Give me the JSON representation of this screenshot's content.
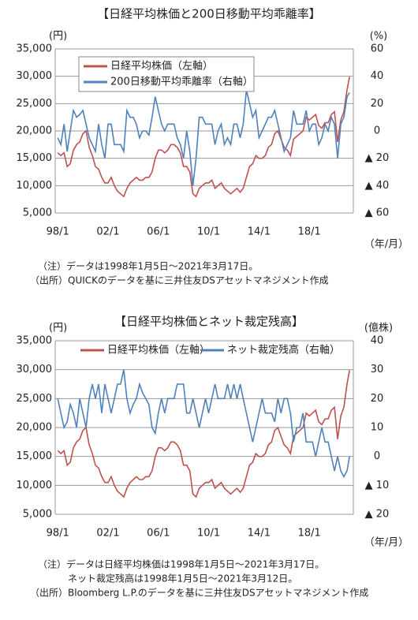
{
  "chart_data": [
    {
      "type": "line",
      "title": "【日経平均株価と200日移動平均乖離率】",
      "ylabel": "(円)",
      "y2label": "(%)",
      "xlabel": "（年/月）",
      "x": [
        1998,
        1998.25,
        1998.5,
        1998.75,
        1999,
        1999.25,
        1999.5,
        1999.75,
        2000,
        2000.25,
        2000.5,
        2000.75,
        2001,
        2001.25,
        2001.5,
        2001.75,
        2002,
        2002.25,
        2002.5,
        2002.75,
        2003,
        2003.25,
        2003.5,
        2003.75,
        2004,
        2004.25,
        2004.5,
        2004.75,
        2005,
        2005.25,
        2005.5,
        2005.75,
        2006,
        2006.25,
        2006.5,
        2006.75,
        2007,
        2007.25,
        2007.5,
        2007.75,
        2008,
        2008.25,
        2008.5,
        2008.75,
        2009,
        2009.25,
        2009.5,
        2009.75,
        2010,
        2010.25,
        2010.5,
        2010.75,
        2011,
        2011.25,
        2011.5,
        2011.75,
        2012,
        2012.25,
        2012.5,
        2012.75,
        2013,
        2013.25,
        2013.5,
        2013.75,
        2014,
        2014.25,
        2014.5,
        2014.75,
        2015,
        2015.25,
        2015.5,
        2015.75,
        2016,
        2016.25,
        2016.5,
        2016.75,
        2017,
        2017.25,
        2017.5,
        2017.75,
        2018,
        2018.25,
        2018.5,
        2018.75,
        2019,
        2019.25,
        2019.5,
        2019.75,
        2020,
        2020.25,
        2020.5,
        2020.75,
        2021,
        2021.2
      ],
      "series": [
        {
          "name": "日経平均株価（左軸）",
          "color": "#c0504d",
          "values": [
            16000,
            15500,
            16000,
            13500,
            14000,
            16500,
            17500,
            18000,
            19500,
            20000,
            17000,
            15500,
            13500,
            13000,
            11500,
            10500,
            10500,
            11500,
            10000,
            9000,
            8500,
            8000,
            9500,
            10500,
            11000,
            11500,
            11000,
            11000,
            11500,
            11500,
            12500,
            15000,
            16500,
            16500,
            16000,
            16500,
            17500,
            17500,
            17000,
            16000,
            13500,
            13500,
            12500,
            8500,
            8000,
            9500,
            10000,
            10500,
            10500,
            11000,
            9500,
            10000,
            10500,
            9500,
            9000,
            8500,
            9000,
            9500,
            8800,
            9500,
            11500,
            13500,
            14000,
            15500,
            15000,
            15000,
            15500,
            17000,
            17500,
            19500,
            20000,
            18500,
            17000,
            16500,
            15500,
            18500,
            19000,
            19500,
            20000,
            22500,
            22000,
            22500,
            23000,
            21000,
            20500,
            21500,
            21500,
            23000,
            23500,
            18000,
            22000,
            23500,
            27500,
            29900
          ]
        },
        {
          "name": "200日移動平均乖離率（右軸）",
          "color": "#4f81bd",
          "axis": "y2",
          "values": [
            -5,
            -10,
            5,
            -15,
            0,
            15,
            10,
            12,
            15,
            5,
            -5,
            -10,
            -15,
            5,
            -10,
            -20,
            5,
            5,
            -10,
            -10,
            -10,
            -15,
            15,
            10,
            10,
            5,
            -5,
            0,
            0,
            -3,
            10,
            25,
            15,
            5,
            0,
            5,
            5,
            5,
            -5,
            -10,
            -20,
            0,
            -15,
            -40,
            -20,
            10,
            10,
            5,
            5,
            5,
            -10,
            0,
            5,
            -10,
            -5,
            -10,
            5,
            5,
            -5,
            5,
            30,
            20,
            10,
            15,
            -5,
            0,
            5,
            10,
            10,
            15,
            5,
            -5,
            -15,
            -10,
            -5,
            15,
            5,
            5,
            5,
            15,
            0,
            5,
            5,
            -10,
            -5,
            5,
            0,
            10,
            5,
            -20,
            5,
            10,
            25,
            28
          ]
        }
      ],
      "xlim": [
        1997.8,
        2021.5
      ],
      "xticks": [
        {
          "value": 1998,
          "label": "98/1"
        },
        {
          "value": 2002,
          "label": "02/1"
        },
        {
          "value": 2006,
          "label": "06/1"
        },
        {
          "value": 2010,
          "label": "10/1"
        },
        {
          "value": 2014,
          "label": "14/1"
        },
        {
          "value": 2018,
          "label": "18/1"
        }
      ],
      "ylim": [
        5000,
        35000
      ],
      "yticks": [
        {
          "value": 5000,
          "label": "5,000"
        },
        {
          "value": 10000,
          "label": "10,000"
        },
        {
          "value": 15000,
          "label": "15,000"
        },
        {
          "value": 20000,
          "label": "20,000"
        },
        {
          "value": 25000,
          "label": "25,000"
        },
        {
          "value": 30000,
          "label": "30,000"
        },
        {
          "value": 35000,
          "label": "35,000"
        }
      ],
      "y2lim": [
        -60,
        60
      ],
      "y2ticks": [
        {
          "value": -60,
          "label": "▲ 60"
        },
        {
          "value": -40,
          "label": "▲ 40"
        },
        {
          "value": -20,
          "label": "▲ 20"
        },
        0,
        20,
        40,
        60
      ],
      "grid": true,
      "legend": "upper left",
      "notes": [
        "（注）データは1998年1月5日～2021年3月17日。",
        "（出所）QUICKのデータを基に三井住友DSアセットマネジメント作成"
      ]
    },
    {
      "type": "line",
      "title": "【日経平均株価とネット裁定残高】",
      "ylabel": "(円)",
      "y2label": "(億株)",
      "xlabel": "（年/月）",
      "x": [
        1998,
        1998.25,
        1998.5,
        1998.75,
        1999,
        1999.25,
        1999.5,
        1999.75,
        2000,
        2000.25,
        2000.5,
        2000.75,
        2001,
        2001.25,
        2001.5,
        2001.75,
        2002,
        2002.25,
        2002.5,
        2002.75,
        2003,
        2003.25,
        2003.5,
        2003.75,
        2004,
        2004.25,
        2004.5,
        2004.75,
        2005,
        2005.25,
        2005.5,
        2005.75,
        2006,
        2006.25,
        2006.5,
        2006.75,
        2007,
        2007.25,
        2007.5,
        2007.75,
        2008,
        2008.25,
        2008.5,
        2008.75,
        2009,
        2009.25,
        2009.5,
        2009.75,
        2010,
        2010.25,
        2010.5,
        2010.75,
        2011,
        2011.25,
        2011.5,
        2011.75,
        2012,
        2012.25,
        2012.5,
        2012.75,
        2013,
        2013.25,
        2013.5,
        2013.75,
        2014,
        2014.25,
        2014.5,
        2014.75,
        2015,
        2015.25,
        2015.5,
        2015.75,
        2016,
        2016.25,
        2016.5,
        2016.75,
        2017,
        2017.25,
        2017.5,
        2017.75,
        2018,
        2018.25,
        2018.5,
        2018.75,
        2019,
        2019.25,
        2019.5,
        2019.75,
        2020,
        2020.25,
        2020.5,
        2020.75,
        2021,
        2021.2
      ],
      "series": [
        {
          "name": "日経平均株価（左軸）",
          "color": "#c0504d",
          "values": [
            16000,
            15500,
            16000,
            13500,
            14000,
            16500,
            17500,
            18000,
            19500,
            20000,
            17000,
            15500,
            13500,
            13000,
            11500,
            10500,
            10500,
            11500,
            10000,
            9000,
            8500,
            8000,
            9500,
            10500,
            11000,
            11500,
            11000,
            11000,
            11500,
            11500,
            12500,
            15000,
            16500,
            16500,
            16000,
            16500,
            17500,
            17500,
            17000,
            16000,
            13500,
            13500,
            12500,
            8500,
            8000,
            9500,
            10000,
            10500,
            10500,
            11000,
            9500,
            10000,
            10500,
            9500,
            9000,
            8500,
            9000,
            9500,
            8800,
            9500,
            11500,
            13500,
            14000,
            15500,
            15000,
            15000,
            15500,
            17000,
            17500,
            19500,
            20000,
            18500,
            17000,
            16500,
            15500,
            18500,
            19000,
            19500,
            20000,
            22500,
            22000,
            22500,
            23000,
            21000,
            20500,
            21500,
            21500,
            23000,
            23500,
            18000,
            22000,
            23500,
            27500,
            29900
          ]
        },
        {
          "name": "ネット裁定残高（右軸）",
          "color": "#4f81bd",
          "axis": "y2",
          "values": [
            20,
            15,
            10,
            12,
            18,
            15,
            10,
            20,
            15,
            10,
            20,
            25,
            20,
            25,
            15,
            25,
            20,
            15,
            20,
            25,
            25,
            30,
            20,
            15,
            18,
            20,
            25,
            22,
            20,
            18,
            10,
            8,
            15,
            20,
            15,
            20,
            20,
            20,
            25,
            25,
            25,
            15,
            15,
            20,
            15,
            10,
            15,
            20,
            15,
            20,
            25,
            20,
            20,
            20,
            25,
            20,
            25,
            20,
            25,
            20,
            15,
            10,
            5,
            10,
            15,
            20,
            15,
            15,
            15,
            12,
            20,
            15,
            20,
            20,
            15,
            5,
            10,
            10,
            15,
            5,
            5,
            5,
            0,
            5,
            10,
            5,
            5,
            0,
            -5,
            0,
            -5,
            -7,
            -5,
            0
          ]
        }
      ],
      "xlim": [
        1997.8,
        2021.5
      ],
      "xticks": [
        {
          "value": 1998,
          "label": "98/1"
        },
        {
          "value": 2002,
          "label": "02/1"
        },
        {
          "value": 2006,
          "label": "06/1"
        },
        {
          "value": 2010,
          "label": "10/1"
        },
        {
          "value": 2014,
          "label": "14/1"
        },
        {
          "value": 2018,
          "label": "18/1"
        }
      ],
      "ylim": [
        5000,
        35000
      ],
      "yticks": [
        {
          "value": 5000,
          "label": "5,000"
        },
        {
          "value": 10000,
          "label": "10,000"
        },
        {
          "value": 15000,
          "label": "15,000"
        },
        {
          "value": 20000,
          "label": "20,000"
        },
        {
          "value": 25000,
          "label": "25,000"
        },
        {
          "value": 30000,
          "label": "30,000"
        },
        {
          "value": 35000,
          "label": "35,000"
        }
      ],
      "y2lim": [
        -20,
        40
      ],
      "y2ticks": [
        {
          "value": -20,
          "label": "▲ 20"
        },
        {
          "value": -10,
          "label": "▲ 10"
        },
        0,
        10,
        20,
        30,
        40
      ],
      "grid": true,
      "legend": "upper center",
      "notes": [
        "（注）データは日経平均株価は1998年1月5日～2021年3月17日。",
        "ネット裁定残高は1998年1月5日～2021年3月12日。",
        "（出所）Bloomberg L.P.のデータを基に三井住友DSアセットマネジメント作成"
      ]
    }
  ]
}
